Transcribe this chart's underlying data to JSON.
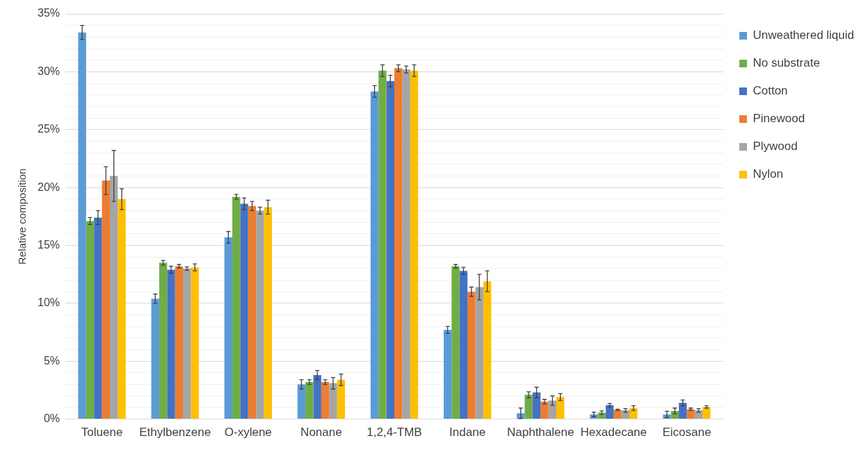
{
  "chart_data": {
    "type": "bar",
    "ylabel": "Relative composition",
    "categories": [
      "Toluene",
      "Ethylbenzene",
      "O-xylene",
      "Nonane",
      "1,2,4-TMB",
      "Indane",
      "Naphthalene",
      "Hexadecane",
      "Eicosane"
    ],
    "series": [
      {
        "name": "Unweathered liquid",
        "color": "#5b9bd5",
        "values": [
          33.4,
          10.4,
          15.7,
          3.0,
          28.3,
          7.7,
          0.5,
          0.4,
          0.4
        ],
        "errors": [
          0.6,
          0.4,
          0.5,
          0.4,
          0.5,
          0.3,
          0.45,
          0.2,
          0.27
        ]
      },
      {
        "name": "No substrate",
        "color": "#70ad47",
        "values": [
          17.1,
          13.5,
          19.2,
          3.2,
          30.1,
          13.2,
          2.1,
          0.55,
          0.7
        ],
        "errors": [
          0.3,
          0.2,
          0.2,
          0.2,
          0.5,
          0.15,
          0.25,
          0.15,
          0.25
        ]
      },
      {
        "name": "Cotton",
        "color": "#4472c4",
        "values": [
          17.4,
          12.9,
          18.6,
          3.8,
          29.2,
          12.8,
          2.3,
          1.2,
          1.4
        ],
        "errors": [
          0.6,
          0.3,
          0.5,
          0.4,
          0.5,
          0.3,
          0.45,
          0.15,
          0.25
        ]
      },
      {
        "name": "Pinewood",
        "color": "#ed7d31",
        "values": [
          20.6,
          13.2,
          18.4,
          3.2,
          30.3,
          11.0,
          1.5,
          0.8,
          0.85
        ],
        "errors": [
          1.2,
          0.15,
          0.4,
          0.2,
          0.3,
          0.4,
          0.2,
          0.05,
          0.1
        ]
      },
      {
        "name": "Plywood",
        "color": "#a5a5a5",
        "values": [
          21.0,
          13.0,
          18.0,
          3.1,
          30.2,
          11.4,
          1.6,
          0.75,
          0.75
        ],
        "errors": [
          2.2,
          0.15,
          0.3,
          0.5,
          0.3,
          1.1,
          0.4,
          0.15,
          0.15
        ]
      },
      {
        "name": "Nylon",
        "color": "#ffc000",
        "values": [
          19.0,
          13.1,
          18.3,
          3.4,
          30.1,
          11.9,
          1.9,
          0.95,
          1.05
        ],
        "errors": [
          0.9,
          0.3,
          0.6,
          0.5,
          0.5,
          0.9,
          0.3,
          0.2,
          0.1
        ]
      }
    ],
    "ylim": [
      0,
      35
    ],
    "yticks": [
      {
        "value": 0,
        "label": "0%"
      },
      {
        "value": 1,
        "label": null
      },
      {
        "value": 2,
        "label": null
      },
      {
        "value": 3,
        "label": null
      },
      {
        "value": 4,
        "label": null
      },
      {
        "value": 5,
        "label": "5%"
      },
      {
        "value": 6,
        "label": null
      },
      {
        "value": 7,
        "label": null
      },
      {
        "value": 8,
        "label": null
      },
      {
        "value": 9,
        "label": null
      },
      {
        "value": 10,
        "label": "10%"
      },
      {
        "value": 11,
        "label": null
      },
      {
        "value": 12,
        "label": null
      },
      {
        "value": 13,
        "label": null
      },
      {
        "value": 14,
        "label": null
      },
      {
        "value": 15,
        "label": "15%"
      },
      {
        "value": 16,
        "label": null
      },
      {
        "value": 17,
        "label": null
      },
      {
        "value": 18,
        "label": null
      },
      {
        "value": 19,
        "label": null
      },
      {
        "value": 20,
        "label": "20%"
      },
      {
        "value": 21,
        "label": null
      },
      {
        "value": 22,
        "label": null
      },
      {
        "value": 23,
        "label": null
      },
      {
        "value": 24,
        "label": null
      },
      {
        "value": 25,
        "label": "25%"
      },
      {
        "value": 26,
        "label": null
      },
      {
        "value": 27,
        "label": null
      },
      {
        "value": 28,
        "label": null
      },
      {
        "value": 29,
        "label": null
      },
      {
        "value": 30,
        "label": "30%"
      },
      {
        "value": 31,
        "label": null
      },
      {
        "value": 32,
        "label": null
      },
      {
        "value": 33,
        "label": null
      },
      {
        "value": 34,
        "label": null
      },
      {
        "value": 35,
        "label": "35%"
      }
    ],
    "grid": "y",
    "legend": "top right"
  }
}
